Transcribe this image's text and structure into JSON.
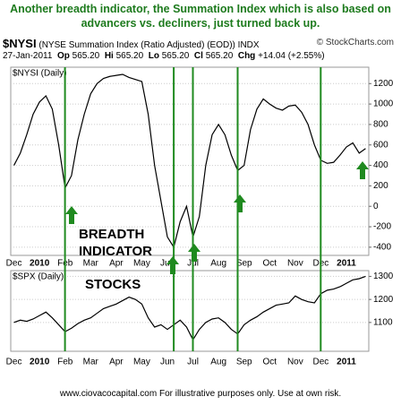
{
  "title": "Another breadth indicator, the Summation Index which is also based on advancers vs. decliners, just turned back up.",
  "footer": "www.ciovacocapital.com   For illustrative purposes only.  Use at own risk.",
  "chart_data": [
    {
      "type": "line",
      "symbol": "$NYSI",
      "description": "(NYSE Summation Index (Ratio Adjusted) (EOD))",
      "exchange": "INDX",
      "source": "© StockCharts.com",
      "quote": {
        "date": "27-Jan-2011",
        "op_label": "Op",
        "op": "565.20",
        "hi_label": "Hi",
        "hi": "565.20",
        "lo_label": "Lo",
        "lo": "565.20",
        "cl_label": "Cl",
        "cl": "565.20",
        "chg_label": "Chg",
        "chg": "+14.04 (+2.55%)"
      },
      "panel_label": "$NYSI (Daily)",
      "annotations": [
        "BREADTH",
        "INDICATOR"
      ],
      "categories": [
        "Dec",
        null,
        null,
        null,
        "2010",
        null,
        null,
        null,
        "Feb",
        null,
        null,
        null,
        "Mar",
        null,
        null,
        null,
        "Apr",
        null,
        null,
        null,
        "May",
        null,
        null,
        null,
        "Jun",
        null,
        null,
        null,
        "Jul",
        null,
        null,
        null,
        "Aug",
        null,
        null,
        null,
        "Sep",
        null,
        null,
        null,
        "Oct",
        null,
        null,
        null,
        "Nov",
        null,
        null,
        null,
        "Dec",
        null,
        null,
        null,
        "2011",
        null,
        null,
        null
      ],
      "series": [
        {
          "name": "$NYSI",
          "color": "#000000",
          "values": [
            400,
            520,
            700,
            900,
            1020,
            1080,
            950,
            600,
            180,
            300,
            650,
            900,
            1100,
            1200,
            1250,
            1270,
            1280,
            1290,
            1260,
            1240,
            1220,
            900,
            400,
            50,
            -300,
            -400,
            -150,
            0,
            -300,
            -100,
            400,
            700,
            800,
            700,
            500,
            350,
            400,
            750,
            950,
            1050,
            1000,
            960,
            940,
            980,
            990,
            920,
            800,
            600,
            450,
            420,
            430,
            500,
            580,
            620,
            520,
            565
          ]
        }
      ],
      "ylim": [
        -480,
        1360
      ],
      "yticks": [
        -400,
        -200,
        0,
        200,
        400,
        600,
        800,
        1000,
        1200
      ],
      "grid": true
    },
    {
      "type": "line",
      "panel_label": "$SPX (Daily)",
      "annotations": [
        "STOCKS"
      ],
      "categories": [
        "Dec",
        null,
        null,
        null,
        "2010",
        null,
        null,
        null,
        "Feb",
        null,
        null,
        null,
        "Mar",
        null,
        null,
        null,
        "Apr",
        null,
        null,
        null,
        "May",
        null,
        null,
        null,
        "Jun",
        null,
        null,
        null,
        "Jul",
        null,
        null,
        null,
        "Aug",
        null,
        null,
        null,
        "Sep",
        null,
        null,
        null,
        "Oct",
        null,
        null,
        null,
        "Nov",
        null,
        null,
        null,
        "Dec",
        null,
        null,
        null,
        "2011",
        null,
        null,
        null
      ],
      "series": [
        {
          "name": "$SPX",
          "color": "#000000",
          "values": [
            1100,
            1110,
            1105,
            1115,
            1130,
            1145,
            1120,
            1090,
            1060,
            1075,
            1095,
            1110,
            1120,
            1140,
            1160,
            1170,
            1180,
            1195,
            1210,
            1200,
            1180,
            1120,
            1080,
            1090,
            1070,
            1090,
            1110,
            1080,
            1025,
            1070,
            1100,
            1115,
            1120,
            1100,
            1070,
            1050,
            1090,
            1110,
            1125,
            1145,
            1160,
            1175,
            1180,
            1185,
            1215,
            1200,
            1190,
            1185,
            1225,
            1240,
            1245,
            1255,
            1270,
            1285,
            1290,
            1300
          ]
        }
      ],
      "ylim": [
        975,
        1325
      ],
      "yticks": [
        1100,
        1200,
        1300
      ],
      "grid": true
    }
  ]
}
